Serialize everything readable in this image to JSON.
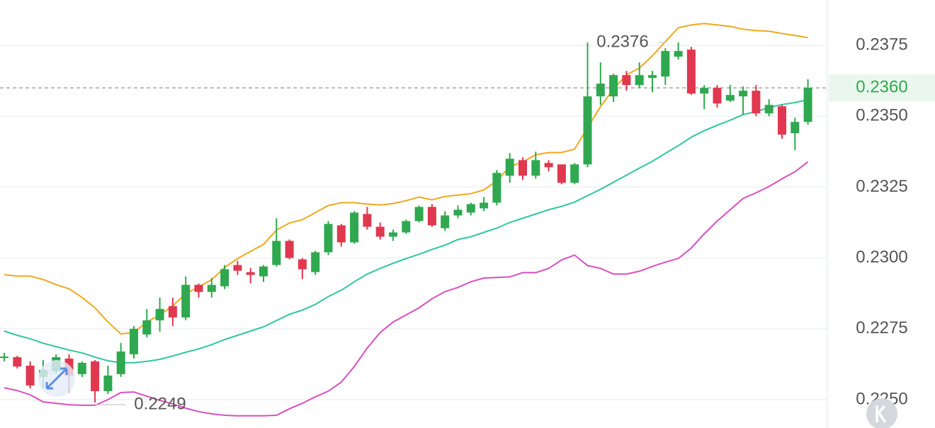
{
  "chart_data": {
    "type": "candlestick",
    "up_color": "#2fa84f",
    "down_color": "#e0384f",
    "open": [
      0.2265,
      0.2265,
      0.2262,
      0.2258,
      0.226,
      0.22645,
      0.2259,
      0.22635,
      0.2253,
      0.2259,
      0.2266,
      0.2273,
      0.2278,
      0.2283,
      0.2279,
      0.22905,
      0.2288,
      0.229,
      0.22975,
      0.2295,
      0.22935,
      0.22975,
      0.2306,
      0.22995,
      0.2295,
      0.2302,
      0.23115,
      0.23055,
      0.23155,
      0.2311,
      0.23075,
      0.2309,
      0.2313,
      0.2318,
      0.23105,
      0.2315,
      0.2316,
      0.23175,
      0.23195,
      0.2329,
      0.23345,
      0.2329,
      0.23335,
      0.2333,
      0.23265,
      0.2333,
      0.2357,
      0.2357,
      0.23645,
      0.2361,
      0.23635,
      0.2364,
      0.2371,
      0.23735,
      0.2358,
      0.236,
      0.23555,
      0.2357,
      0.2359,
      0.2351,
      0.23535,
      0.2344,
      0.2348
    ],
    "high": [
      0.22665,
      0.22655,
      0.22635,
      0.2264,
      0.2266,
      0.2266,
      0.22635,
      0.2264,
      0.2262,
      0.227,
      0.2276,
      0.2282,
      0.2286,
      0.2286,
      0.22935,
      0.2291,
      0.2293,
      0.22975,
      0.2299,
      0.22965,
      0.22975,
      0.2314,
      0.23065,
      0.23,
      0.23025,
      0.2313,
      0.2312,
      0.23165,
      0.2318,
      0.23125,
      0.231,
      0.23135,
      0.23185,
      0.2319,
      0.23165,
      0.23185,
      0.23195,
      0.23215,
      0.2331,
      0.2337,
      0.23355,
      0.23375,
      0.23345,
      0.2333,
      0.23335,
      0.2376,
      0.2369,
      0.2365,
      0.2366,
      0.2369,
      0.2366,
      0.2374,
      0.2376,
      0.23745,
      0.2361,
      0.2361,
      0.2361,
      0.23605,
      0.2361,
      0.2356,
      0.2354,
      0.23495,
      0.2363
    ],
    "low": [
      0.22635,
      0.2261,
      0.2254,
      0.2254,
      0.2259,
      0.22525,
      0.2258,
      0.2249,
      0.2252,
      0.2258,
      0.22645,
      0.2272,
      0.2274,
      0.2276,
      0.2278,
      0.2286,
      0.2286,
      0.2289,
      0.2294,
      0.2291,
      0.22915,
      0.2297,
      0.22995,
      0.22925,
      0.2294,
      0.2301,
      0.2304,
      0.2305,
      0.231,
      0.23065,
      0.2306,
      0.23085,
      0.23125,
      0.2311,
      0.23095,
      0.2314,
      0.2315,
      0.23165,
      0.23185,
      0.23265,
      0.23275,
      0.2328,
      0.23305,
      0.2326,
      0.2326,
      0.2332,
      0.2354,
      0.2355,
      0.2359,
      0.236,
      0.23585,
      0.2361,
      0.237,
      0.23575,
      0.23525,
      0.2353,
      0.2355,
      0.23505,
      0.235,
      0.235,
      0.2342,
      0.2338,
      0.2347
    ],
    "close": [
      0.22652,
      0.22617,
      0.2255,
      0.22605,
      0.2265,
      0.22585,
      0.2263,
      0.2253,
      0.22585,
      0.2267,
      0.2275,
      0.2278,
      0.2282,
      0.2279,
      0.22905,
      0.2288,
      0.22905,
      0.2296,
      0.22955,
      0.2294,
      0.2297,
      0.2306,
      0.23,
      0.2296,
      0.2302,
      0.2312,
      0.23055,
      0.2316,
      0.2311,
      0.23075,
      0.2309,
      0.2313,
      0.2318,
      0.23115,
      0.2315,
      0.2317,
      0.2319,
      0.23195,
      0.233,
      0.2335,
      0.2329,
      0.23345,
      0.2332,
      0.23265,
      0.2333,
      0.2357,
      0.23615,
      0.23645,
      0.2361,
      0.23645,
      0.23645,
      0.2373,
      0.2373,
      0.2358,
      0.236,
      0.23545,
      0.23575,
      0.2359,
      0.2351,
      0.2354,
      0.23435,
      0.2348,
      0.236
    ],
    "bands": [
      {
        "color": "#f0a81c",
        "values": [
          0.22941,
          0.22936,
          0.22936,
          0.22924,
          0.22906,
          0.22891,
          0.22861,
          0.22824,
          0.22774,
          0.22732,
          0.22737,
          0.22774,
          0.22799,
          0.22831,
          0.22874,
          0.22898,
          0.22923,
          0.22966,
          0.22998,
          0.23023,
          0.23048,
          0.23098,
          0.23123,
          0.23135,
          0.2316,
          0.23185,
          0.23195,
          0.23195,
          0.2319,
          0.23187,
          0.23192,
          0.23202,
          0.23215,
          0.23205,
          0.23217,
          0.23222,
          0.23227,
          0.2324,
          0.23272,
          0.23322,
          0.23339,
          0.23364,
          0.23372,
          0.23372,
          0.23384,
          0.23459,
          0.23534,
          0.23596,
          0.23646,
          0.2367,
          0.23713,
          0.23763,
          0.23812,
          0.23822,
          0.23827,
          0.23822,
          0.23817,
          0.23807,
          0.23802,
          0.238,
          0.23792,
          0.23785,
          0.23777
        ]
      },
      {
        "color": "#2fc79f",
        "values": [
          0.22742,
          0.22727,
          0.22715,
          0.22699,
          0.22687,
          0.22675,
          0.22665,
          0.2265,
          0.22637,
          0.2263,
          0.2263,
          0.22635,
          0.22642,
          0.22654,
          0.22667,
          0.22679,
          0.22694,
          0.22712,
          0.22727,
          0.22742,
          0.22757,
          0.22779,
          0.22801,
          0.22816,
          0.22836,
          0.22864,
          0.22886,
          0.22916,
          0.22943,
          0.22963,
          0.22981,
          0.22998,
          0.23013,
          0.2303,
          0.23045,
          0.23065,
          0.23075,
          0.2309,
          0.23105,
          0.23125,
          0.2314,
          0.23155,
          0.2317,
          0.23182,
          0.23197,
          0.2322,
          0.23242,
          0.23267,
          0.23292,
          0.23317,
          0.23341,
          0.23369,
          0.23396,
          0.23426,
          0.23449,
          0.23468,
          0.23486,
          0.23506,
          0.23516,
          0.23531,
          0.23541,
          0.23548,
          0.23558
        ]
      },
      {
        "color": "#d94fbf",
        "values": [
          0.22542,
          0.22532,
          0.22517,
          0.22492,
          0.22487,
          0.22482,
          0.2248,
          0.2248,
          0.225,
          0.22525,
          0.22527,
          0.22512,
          0.22497,
          0.22485,
          0.2247,
          0.22458,
          0.2245,
          0.22445,
          0.22443,
          0.22443,
          0.22443,
          0.22445,
          0.22468,
          0.22487,
          0.2251,
          0.2253,
          0.22562,
          0.22617,
          0.22682,
          0.22737,
          0.22774,
          0.22799,
          0.22824,
          0.22856,
          0.22881,
          0.22896,
          0.22916,
          0.22929,
          0.22931,
          0.22933,
          0.22948,
          0.22948,
          0.22963,
          0.22993,
          0.2301,
          0.22973,
          0.22963,
          0.22943,
          0.22943,
          0.22953,
          0.2297,
          0.22985,
          0.22998,
          0.23035,
          0.23085,
          0.2313,
          0.2317,
          0.2321,
          0.2323,
          0.23252,
          0.23279,
          0.23304,
          0.23339
        ]
      }
    ],
    "ylim": [
      0.224,
      0.2391
    ],
    "yticks": [
      {
        "value": 0.225,
        "label": "0.2250"
      },
      0.2275,
      {
        "value": 0.23,
        "label": "0.2300"
      },
      0.2325,
      {
        "value": 0.235,
        "label": "0.2350"
      },
      0.2375
    ],
    "grid": true,
    "annotations": [
      {
        "value": 0.2376,
        "index": 45
      },
      {
        "value": 0.2249,
        "index": 7
      }
    ],
    "last_price": {
      "value": 0.236,
      "label": "0.2360"
    }
  }
}
